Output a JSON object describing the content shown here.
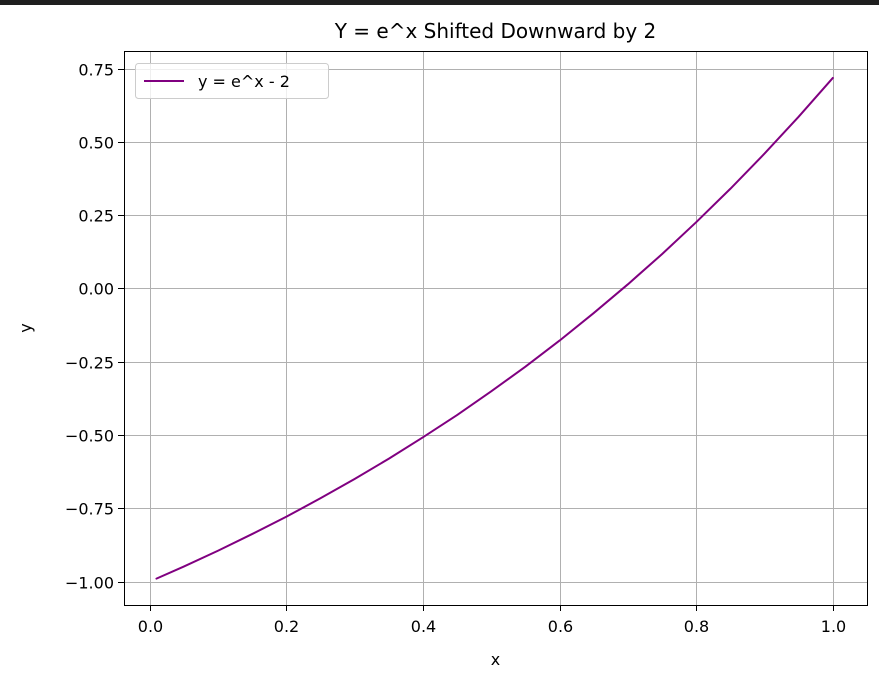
{
  "chart_data": {
    "type": "line",
    "title": "Y = e^x Shifted Downward by 2",
    "xlabel": "x",
    "ylabel": "y",
    "xlim": [
      -0.0375,
      1.05
    ],
    "ylim": [
      -1.08,
      0.81
    ],
    "x_ticks": [
      0.0,
      0.2,
      0.4,
      0.6,
      0.8,
      1.0
    ],
    "x_tick_labels": [
      "0.0",
      "0.2",
      "0.4",
      "0.6",
      "0.8",
      "1.0"
    ],
    "y_ticks": [
      -1.0,
      -0.75,
      -0.5,
      -0.25,
      0.0,
      0.25,
      0.5,
      0.75
    ],
    "y_tick_labels": [
      "−1.00",
      "−0.75",
      "−0.50",
      "−0.25",
      "0.00",
      "0.25",
      "0.50",
      "0.75"
    ],
    "grid": true,
    "legend_position": "top-left",
    "series": [
      {
        "name": "y = e^x - 2",
        "color": "#800080",
        "x": [
          0.01,
          0.05,
          0.1,
          0.15,
          0.2,
          0.25,
          0.3,
          0.35,
          0.4,
          0.45,
          0.5,
          0.55,
          0.6,
          0.65,
          0.7,
          0.75,
          0.8,
          0.85,
          0.9,
          0.95,
          1.0
        ],
        "y": [
          -0.99,
          -0.949,
          -0.895,
          -0.838,
          -0.779,
          -0.716,
          -0.65,
          -0.581,
          -0.508,
          -0.432,
          -0.351,
          -0.267,
          -0.178,
          -0.084,
          0.014,
          0.117,
          0.226,
          0.34,
          0.46,
          0.586,
          0.718
        ]
      }
    ]
  }
}
